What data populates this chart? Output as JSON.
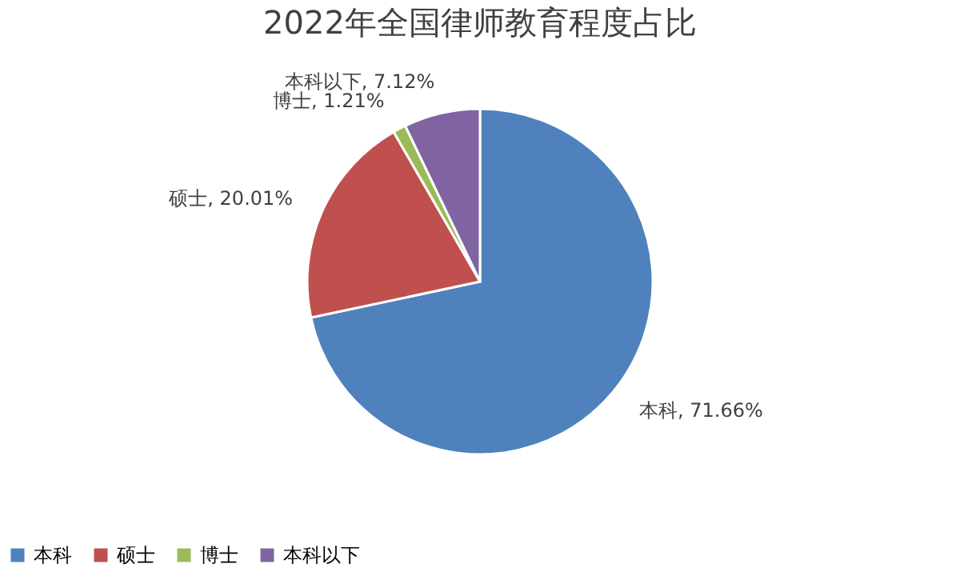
{
  "chart_data": {
    "type": "pie",
    "title": "2022年全国律师教育程度占比",
    "categories": [
      "本科",
      "硕士",
      "博士",
      "本科以下"
    ],
    "values": [
      71.66,
      20.01,
      1.21,
      7.12
    ],
    "colors": [
      "#4f81bd",
      "#c0504d",
      "#9bbb59",
      "#8064a2"
    ],
    "value_labels": [
      "本科, 71.66%",
      "硕士, 20.01%",
      "博士, 1.21%",
      "本科以下, 7.12%"
    ],
    "legend": "bottom"
  }
}
